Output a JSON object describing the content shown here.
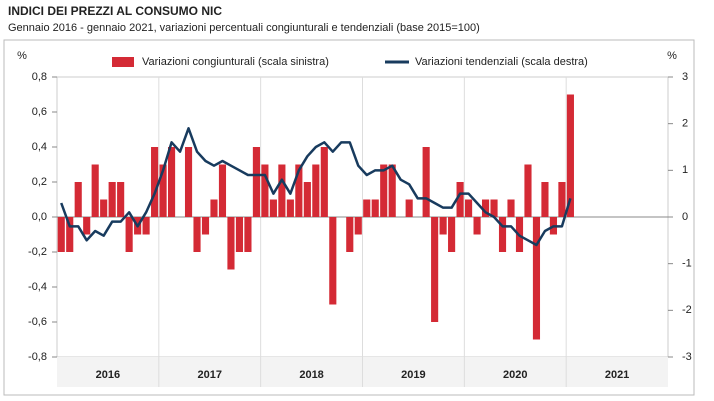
{
  "chart_data": {
    "type": "bar-line",
    "title": "INDICI DEI PREZZI AL CONSUMO NIC",
    "subtitle": "Gennaio 2016 - gennaio 2021, variazioni percentuali congiunturali e tendenziali (base 2015=100)",
    "y_label": "%",
    "y2_label": "%",
    "years": [
      "2016",
      "2017",
      "2018",
      "2019",
      "2020",
      "2021"
    ],
    "series": [
      {
        "name": "Variazioni congiunturali (scala sinistra)",
        "type": "bar",
        "color": "#d42a35",
        "axis": "y",
        "values": [
          -0.2,
          -0.2,
          0.2,
          -0.1,
          0.3,
          0.1,
          0.2,
          0.2,
          -0.2,
          -0.1,
          -0.1,
          0.4,
          0.3,
          0.4,
          0.0,
          0.4,
          -0.2,
          -0.1,
          0.1,
          0.3,
          -0.3,
          -0.2,
          -0.2,
          0.4,
          0.3,
          0.1,
          0.3,
          0.1,
          0.3,
          0.2,
          0.3,
          0.4,
          -0.5,
          0.0,
          -0.2,
          -0.1,
          0.1,
          0.1,
          0.3,
          0.3,
          0.0,
          0.1,
          0.0,
          0.4,
          -0.6,
          -0.1,
          -0.2,
          0.2,
          0.1,
          -0.1,
          0.1,
          0.1,
          -0.2,
          0.1,
          -0.2,
          0.3,
          -0.7,
          0.2,
          -0.1,
          0.2,
          0.7
        ]
      },
      {
        "name": "Variazioni tendenziali (scala destra)",
        "type": "line",
        "color": "#183b5e",
        "axis": "y2",
        "values": [
          0.3,
          -0.2,
          -0.2,
          -0.5,
          -0.3,
          -0.4,
          -0.1,
          -0.1,
          0.1,
          -0.2,
          0.1,
          0.5,
          1.0,
          1.6,
          1.4,
          1.9,
          1.4,
          1.2,
          1.1,
          1.2,
          1.1,
          1.0,
          0.9,
          0.9,
          0.9,
          0.5,
          0.8,
          0.5,
          1.0,
          1.3,
          1.5,
          1.6,
          1.4,
          1.6,
          1.6,
          1.1,
          0.9,
          1.0,
          1.0,
          1.1,
          0.8,
          0.7,
          0.4,
          0.4,
          0.3,
          0.2,
          0.2,
          0.5,
          0.5,
          0.3,
          0.1,
          0.0,
          -0.2,
          -0.2,
          -0.4,
          -0.5,
          -0.6,
          -0.3,
          -0.2,
          -0.2,
          0.4
        ]
      }
    ],
    "ylim": [
      -0.8,
      0.8
    ],
    "yticks": [
      {
        "value": -0.8,
        "label": "-0,8"
      },
      {
        "value": -0.6,
        "label": "-0,6"
      },
      {
        "value": -0.4,
        "label": "-0,4"
      },
      {
        "value": -0.2,
        "label": "-0,2"
      },
      {
        "value": 0,
        "label": "0,0"
      },
      {
        "value": 0.2,
        "label": "0,2"
      },
      {
        "value": 0.4,
        "label": "0,4"
      },
      {
        "value": 0.6,
        "label": "0,6"
      },
      {
        "value": 0.8,
        "label": "0,8"
      }
    ],
    "y2lim": [
      -3,
      3
    ],
    "y2ticks": [
      -3,
      -2,
      -1,
      0,
      1,
      2,
      3
    ],
    "legend": "top"
  }
}
